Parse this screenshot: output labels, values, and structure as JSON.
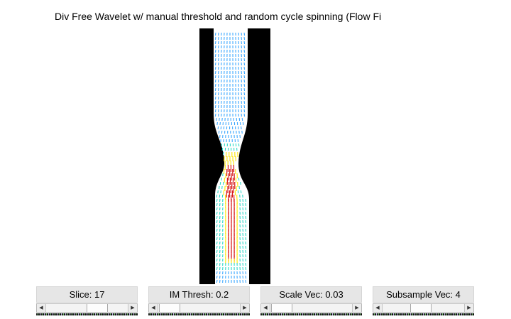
{
  "figure": {
    "title": "Div Free Wavelet w/ manual threshold and random cycle spinning (Flow Fi"
  },
  "controls": [
    {
      "label": "Slice: 17",
      "slider_fraction": 0.5
    },
    {
      "label": "IM Thresh: 0.2",
      "slider_fraction": 0.2
    },
    {
      "label": "Scale Vec: 0.03",
      "slider_fraction": 0.05
    },
    {
      "label": "Subsample Vec: 4",
      "slider_fraction": 0.35
    }
  ],
  "colors": {
    "background": "#000000",
    "slow_flow": "#3ba7ff",
    "medium_flow": "#2ad9c8",
    "fast_flow_yellow": "#ffe600",
    "fast_flow_red": "#d40000",
    "vessel_mask": "#ffffff"
  }
}
